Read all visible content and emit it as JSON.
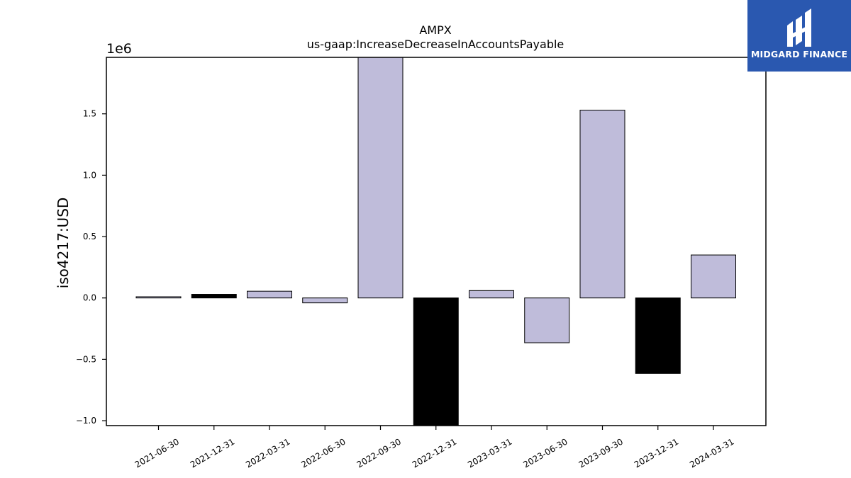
{
  "chart_data": {
    "type": "bar",
    "title": "AMPX",
    "subtitle": "us-gaap:IncreaseDecreaseInAccountsPayable",
    "ylabel": "iso4217:USD",
    "xlabel": "",
    "offset_label": "1e6",
    "ylim": [
      -1.04,
      1.96
    ],
    "yticks": [
      -1.0,
      -0.5,
      0.0,
      0.5,
      1.0,
      1.5
    ],
    "ytick_labels": [
      "−1.0",
      "−0.5",
      "0.0",
      "0.5",
      "1.0",
      "1.5"
    ],
    "categories": [
      "2021-06-30",
      "2021-12-31",
      "2022-03-31",
      "2022-06-30",
      "2022-09-30",
      "2022-12-31",
      "2023-03-31",
      "2023-06-30",
      "2023-09-30",
      "2023-12-31",
      "2024-03-31"
    ],
    "values": [
      0.01,
      0.03,
      0.055,
      -0.04,
      2.2,
      -1.2,
      0.06,
      -0.365,
      1.53,
      -0.615,
      0.35
    ],
    "bar_colors": [
      "#bfbcda",
      "#000000",
      "#bfbcda",
      "#bfbcda",
      "#bfbcda",
      "#000000",
      "#bfbcda",
      "#bfbcda",
      "#bfbcda",
      "#000000",
      "#bfbcda"
    ],
    "grid": false,
    "legend": "none"
  },
  "logo": {
    "text": "MIDGARD FINANCE",
    "background": "#2a58b0"
  }
}
